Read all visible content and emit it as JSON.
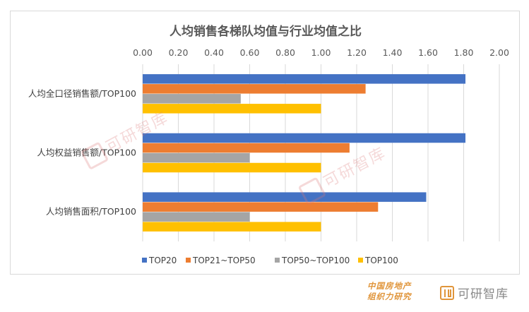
{
  "chart_data": {
    "type": "bar",
    "orientation": "horizontal",
    "title": "人均销售各梯队均值与行业均值之比",
    "categories": [
      "人均全口径销售额/TOP100",
      "人均权益销售额/TOP100",
      "人均销售面积/TOP100"
    ],
    "series": [
      {
        "name": "TOP20",
        "color": "#4472C4",
        "values": [
          1.81,
          1.81,
          1.59
        ]
      },
      {
        "name": "TOP21~TOP50",
        "color": "#ED7D31",
        "values": [
          1.25,
          1.16,
          1.32
        ]
      },
      {
        "name": "TOP50~TOP100",
        "color": "#A5A5A5",
        "values": [
          0.55,
          0.6,
          0.6
        ]
      },
      {
        "name": "TOP100",
        "color": "#FFC000",
        "values": [
          1.0,
          1.0,
          1.0
        ]
      }
    ],
    "xlim": [
      0,
      2.0
    ],
    "xticks": [
      "0.00",
      "0.20",
      "0.40",
      "0.60",
      "0.80",
      "1.00",
      "1.20",
      "1.40",
      "1.60",
      "1.80",
      "2.00"
    ],
    "grid": true,
    "legend_position": "bottom"
  },
  "footer": {
    "org_line1": "中国房地产",
    "org_line2": "组织力研究",
    "logo_text": "可研智库"
  },
  "watermark": {
    "text": "可研智库"
  }
}
